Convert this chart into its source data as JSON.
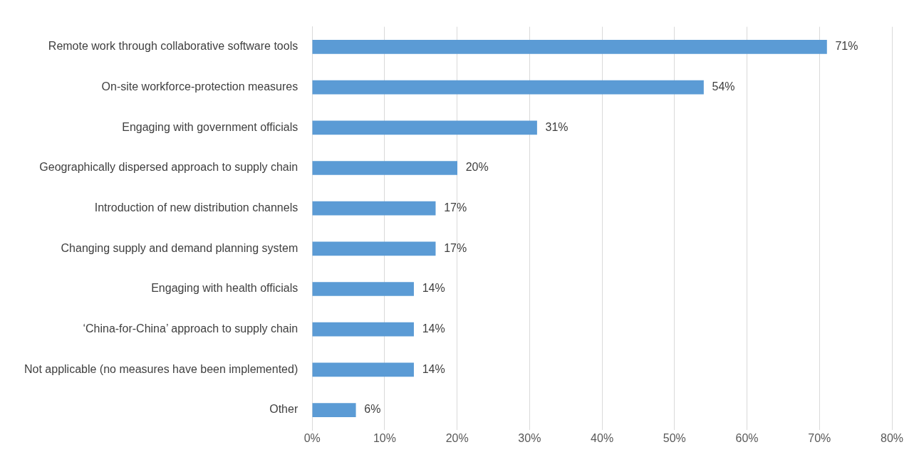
{
  "chart_data": {
    "type": "bar",
    "orientation": "horizontal",
    "categories": [
      "Remote work through collaborative software tools",
      "On-site workforce-protection measures",
      "Engaging with government officials",
      "Geographically dispersed approach to supply chain",
      "Introduction of new distribution channels",
      "Changing supply and demand planning system",
      "Engaging with health officials",
      "‘China-for-China’ approach to supply chain",
      "Not applicable (no measures have been implemented)",
      "Other"
    ],
    "values": [
      71,
      54,
      31,
      20,
      17,
      17,
      14,
      14,
      14,
      6
    ],
    "value_labels": [
      "71%",
      "54%",
      "31%",
      "20%",
      "17%",
      "17%",
      "14%",
      "14%",
      "14%",
      "6%"
    ],
    "color": "#5b9bd5",
    "xlim": [
      0,
      80
    ],
    "xticks": [
      {
        "value": 0,
        "label": "0%"
      },
      {
        "value": 10,
        "label": "10%"
      },
      {
        "value": 20,
        "label": "20%"
      },
      {
        "value": 30,
        "label": "30%"
      },
      {
        "value": 40,
        "label": "40%"
      },
      {
        "value": 50,
        "label": "50%"
      },
      {
        "value": 60,
        "label": "60%"
      },
      {
        "value": 70,
        "label": "70%"
      },
      {
        "value": 80,
        "label": "80%"
      }
    ],
    "grid": "x",
    "legend": false
  }
}
